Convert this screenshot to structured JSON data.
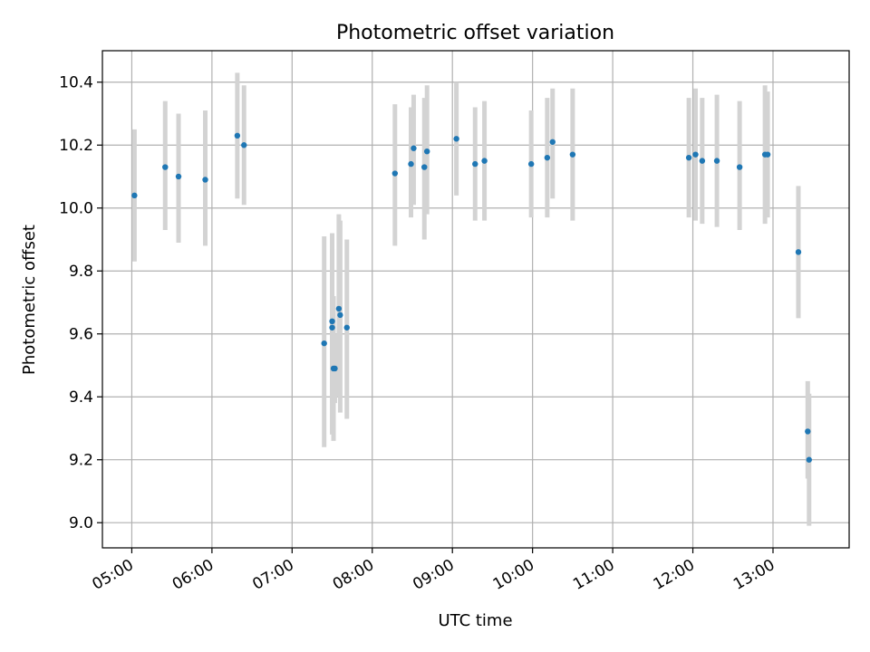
{
  "chart_data": {
    "type": "scatter",
    "title": "Photometric offset variation",
    "xlabel": "UTC time",
    "ylabel": "Photometric offset",
    "xlim": [
      "04:38",
      "13:57"
    ],
    "ylim": [
      8.92,
      10.5
    ],
    "grid": true,
    "x_ticks": [
      "05:00",
      "06:00",
      "07:00",
      "08:00",
      "09:00",
      "10:00",
      "11:00",
      "12:00",
      "13:00"
    ],
    "y_ticks": [
      "9.0",
      "9.2",
      "9.4",
      "9.6",
      "9.8",
      "10.0",
      "10.2",
      "10.4"
    ],
    "colors": {
      "point": "#1f77b4",
      "errorbar": "#d3d3d3"
    },
    "series": [
      {
        "points": [
          {
            "x": "05:02",
            "y": 10.04,
            "ylow": 9.83,
            "yhigh": 10.25
          },
          {
            "x": "05:25",
            "y": 10.13,
            "ylow": 9.93,
            "yhigh": 10.34
          },
          {
            "x": "05:35",
            "y": 10.1,
            "ylow": 9.89,
            "yhigh": 10.3
          },
          {
            "x": "05:55",
            "y": 10.09,
            "ylow": 9.88,
            "yhigh": 10.31
          },
          {
            "x": "06:19",
            "y": 10.23,
            "ylow": 10.03,
            "yhigh": 10.43
          },
          {
            "x": "06:24",
            "y": 10.2,
            "ylow": 10.01,
            "yhigh": 10.39
          },
          {
            "x": "07:24",
            "y": 9.57,
            "ylow": 9.24,
            "yhigh": 9.91
          },
          {
            "x": "07:30",
            "y": 9.62,
            "ylow": 9.28,
            "yhigh": 9.87
          },
          {
            "x": "07:30",
            "y": 9.64,
            "ylow": 9.38,
            "yhigh": 9.92
          },
          {
            "x": "07:31",
            "y": 9.49,
            "ylow": 9.26,
            "yhigh": 9.72
          },
          {
            "x": "07:32",
            "y": 9.49,
            "ylow": 9.38,
            "yhigh": 9.6
          },
          {
            "x": "07:35",
            "y": 9.68,
            "ylow": 9.4,
            "yhigh": 9.98
          },
          {
            "x": "07:36",
            "y": 9.66,
            "ylow": 9.35,
            "yhigh": 9.96
          },
          {
            "x": "07:41",
            "y": 9.62,
            "ylow": 9.33,
            "yhigh": 9.9
          },
          {
            "x": "08:17",
            "y": 10.11,
            "ylow": 9.88,
            "yhigh": 10.33
          },
          {
            "x": "08:29",
            "y": 10.14,
            "ylow": 9.97,
            "yhigh": 10.32
          },
          {
            "x": "08:31",
            "y": 10.19,
            "ylow": 10.01,
            "yhigh": 10.36
          },
          {
            "x": "08:39",
            "y": 10.13,
            "ylow": 9.9,
            "yhigh": 10.35
          },
          {
            "x": "08:41",
            "y": 10.18,
            "ylow": 9.98,
            "yhigh": 10.39
          },
          {
            "x": "09:03",
            "y": 10.22,
            "ylow": 10.04,
            "yhigh": 10.4
          },
          {
            "x": "09:17",
            "y": 10.14,
            "ylow": 9.96,
            "yhigh": 10.32
          },
          {
            "x": "09:24",
            "y": 10.15,
            "ylow": 9.96,
            "yhigh": 10.34
          },
          {
            "x": "09:59",
            "y": 10.14,
            "ylow": 9.97,
            "yhigh": 10.31
          },
          {
            "x": "10:11",
            "y": 10.16,
            "ylow": 9.97,
            "yhigh": 10.35
          },
          {
            "x": "10:15",
            "y": 10.21,
            "ylow": 10.03,
            "yhigh": 10.38
          },
          {
            "x": "10:30",
            "y": 10.17,
            "ylow": 9.96,
            "yhigh": 10.38
          },
          {
            "x": "11:57",
            "y": 10.16,
            "ylow": 9.97,
            "yhigh": 10.35
          },
          {
            "x": "12:02",
            "y": 10.17,
            "ylow": 9.96,
            "yhigh": 10.38
          },
          {
            "x": "12:07",
            "y": 10.15,
            "ylow": 9.95,
            "yhigh": 10.35
          },
          {
            "x": "12:18",
            "y": 10.15,
            "ylow": 9.94,
            "yhigh": 10.36
          },
          {
            "x": "12:35",
            "y": 10.13,
            "ylow": 9.93,
            "yhigh": 10.34
          },
          {
            "x": "12:54",
            "y": 10.17,
            "ylow": 9.95,
            "yhigh": 10.39
          },
          {
            "x": "12:56",
            "y": 10.17,
            "ylow": 9.97,
            "yhigh": 10.37
          },
          {
            "x": "13:19",
            "y": 9.86,
            "ylow": 9.65,
            "yhigh": 10.07
          },
          {
            "x": "13:26",
            "y": 9.29,
            "ylow": 9.14,
            "yhigh": 9.45
          },
          {
            "x": "13:27",
            "y": 9.2,
            "ylow": 8.99,
            "yhigh": 9.41
          }
        ]
      }
    ]
  }
}
